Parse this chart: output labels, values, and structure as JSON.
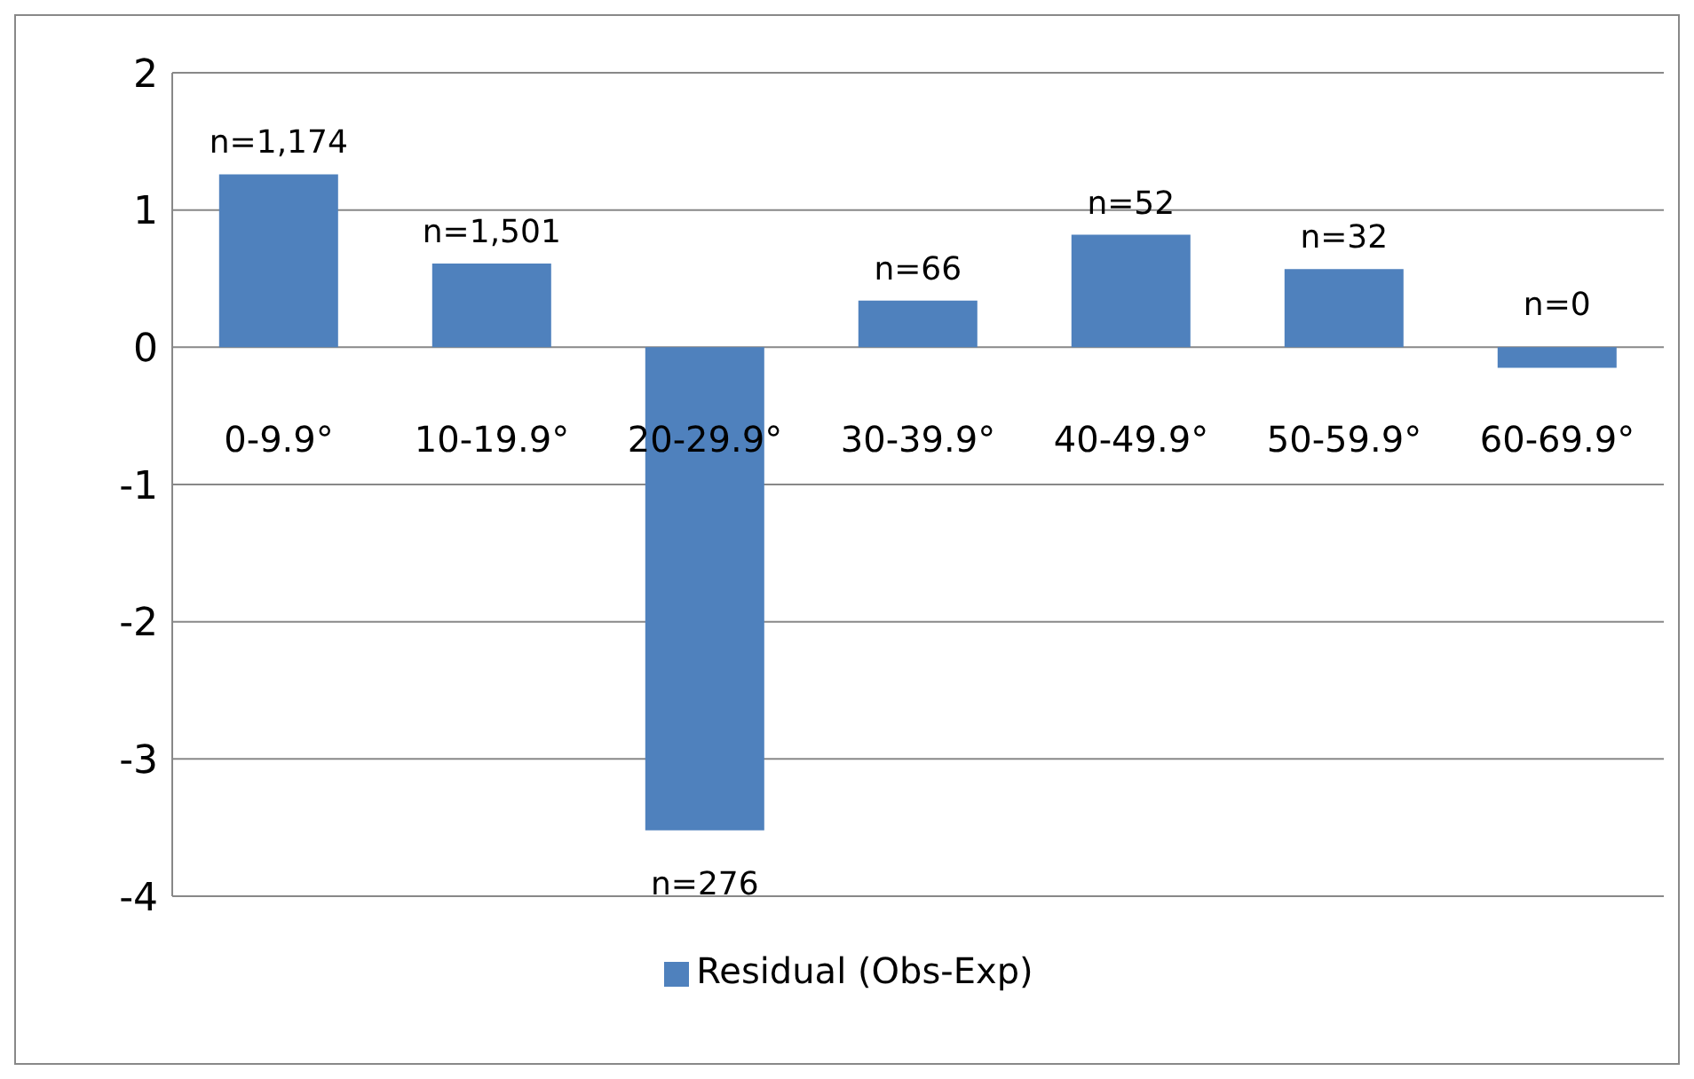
{
  "chart_data": {
    "type": "bar",
    "categories": [
      "0-9.9°",
      "10-19.9°",
      "20-29.9°",
      "30-39.9°",
      "40-49.9°",
      "50-59.9°",
      "60-69.9°"
    ],
    "series": [
      {
        "name": "Residual (Obs-Exp)",
        "color": "#4f81bd",
        "values": [
          1.26,
          0.61,
          -3.52,
          0.34,
          0.82,
          0.57,
          -0.15
        ]
      }
    ],
    "annotations": [
      {
        "text": "n=1,174",
        "x": "0-9.9°",
        "y": 1.26
      },
      {
        "text": "n=1,501",
        "x": "10-19.9°",
        "y": 0.61
      },
      {
        "text": "n=276",
        "x": "20-29.9°",
        "y": -3.52
      },
      {
        "text": "n=66",
        "x": "30-39.9°",
        "y": 0.34
      },
      {
        "text": "n=52",
        "x": "40-49.9°",
        "y": 0.82
      },
      {
        "text": "n=32",
        "x": "50-59.9°",
        "y": 0.57
      },
      {
        "text": "n=0",
        "x": "60-69.9°",
        "y": -0.15
      }
    ],
    "ylim": [
      -4,
      2
    ],
    "yticks": [
      -4,
      -3,
      -2,
      -1,
      0,
      1,
      2
    ],
    "grid": "y",
    "legend": "bottom"
  }
}
